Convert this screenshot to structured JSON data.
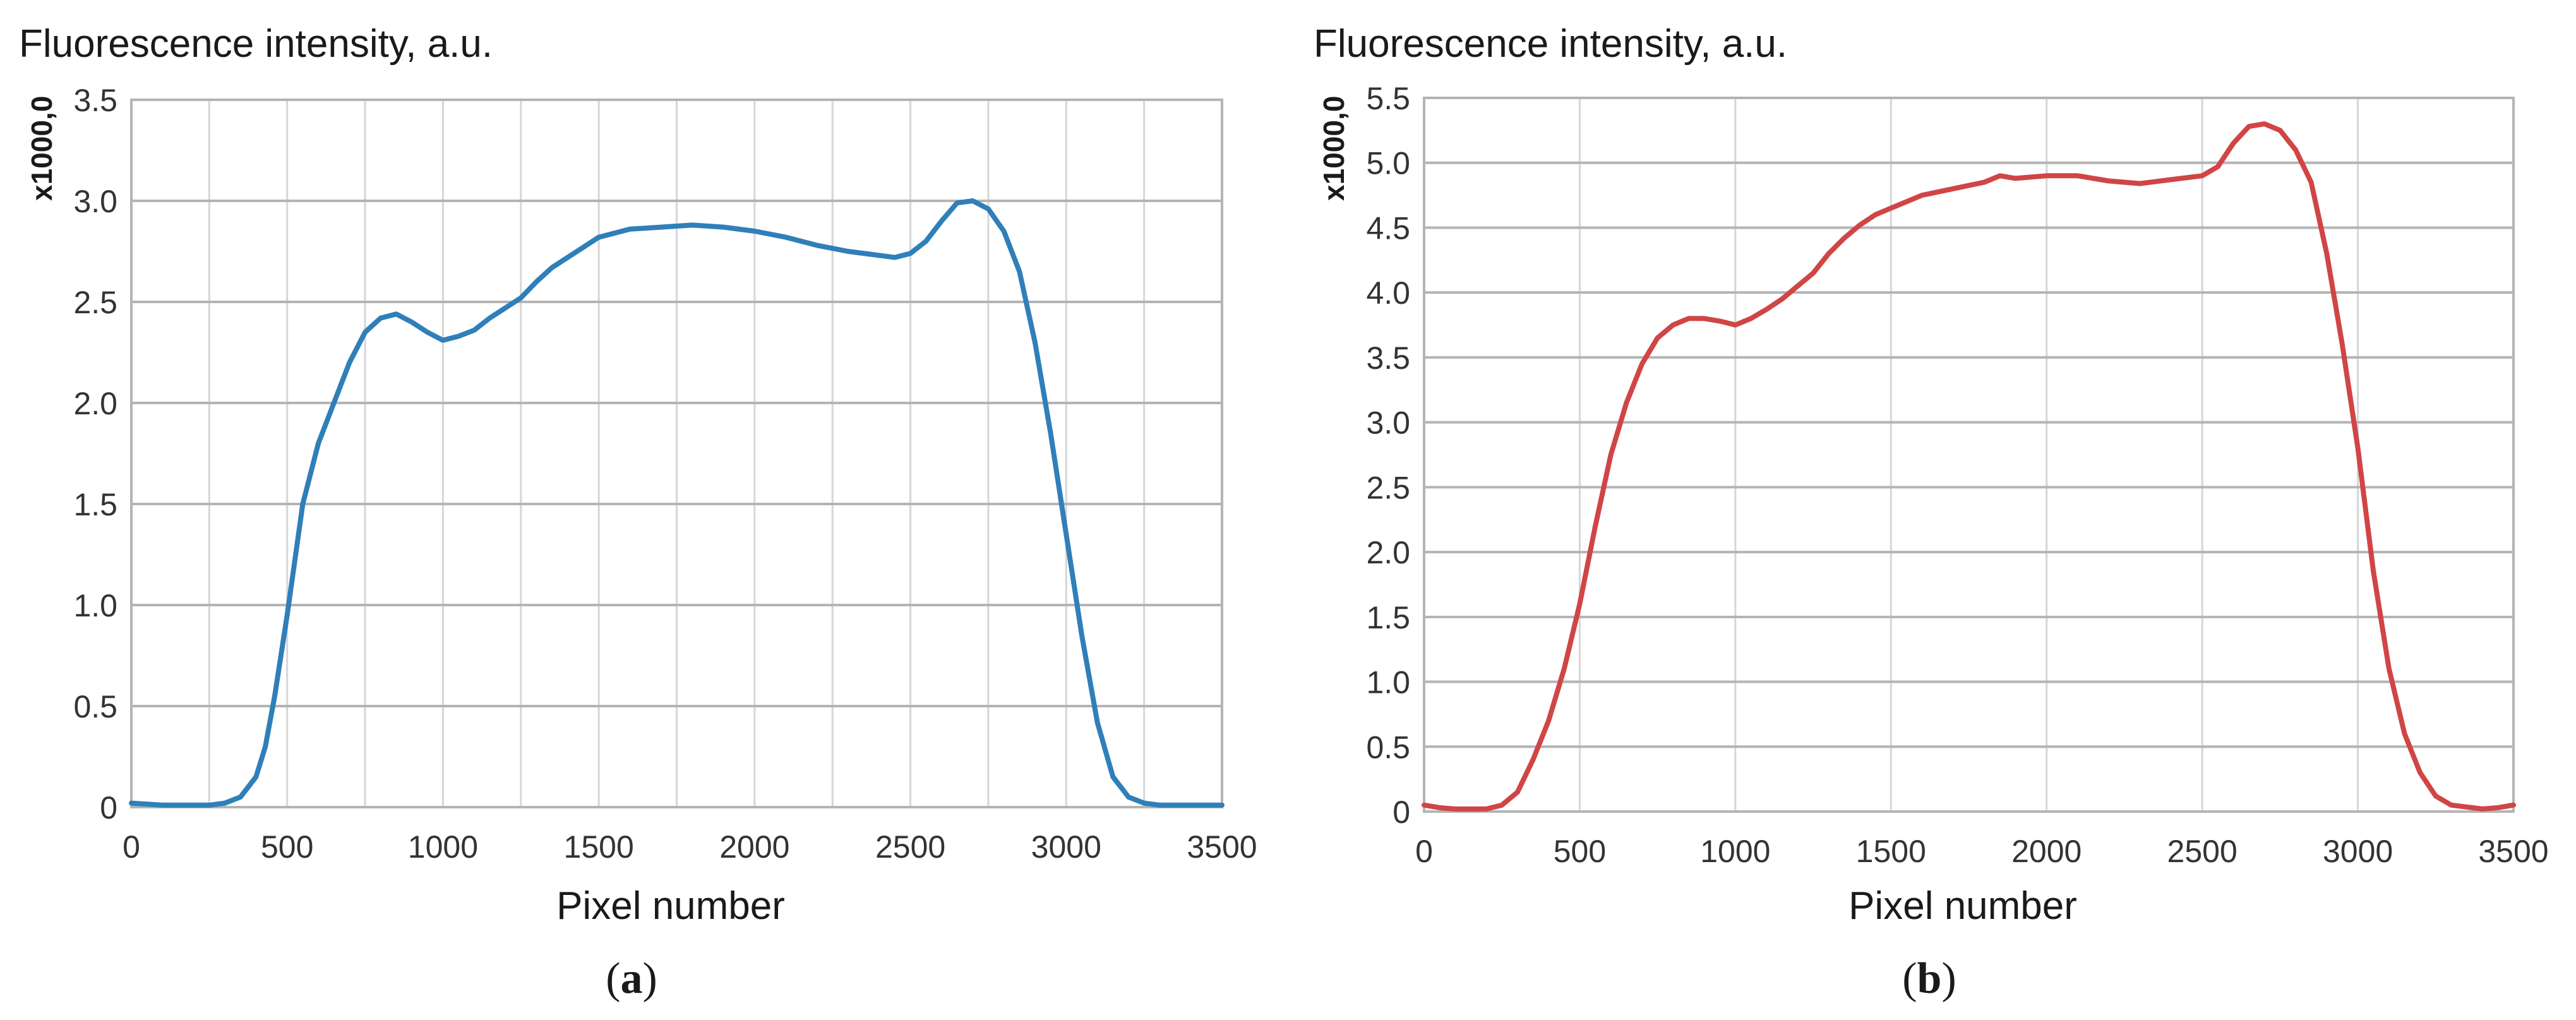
{
  "panels": [
    {
      "ylabel": "Fluorescence intensity, a.u.",
      "scale_label": "x1000,0",
      "xlabel": "Pixel number",
      "caption_open": "(",
      "caption_letter": "a",
      "caption_close": ")"
    },
    {
      "ylabel": "Fluorescence intensity, a.u.",
      "scale_label": "x1000,0",
      "xlabel": "Pixel number",
      "caption_open": "(",
      "caption_letter": "b",
      "caption_close": ")"
    }
  ],
  "chart_data": [
    {
      "type": "line",
      "title": "",
      "xlabel": "Pixel number",
      "ylabel": "Fluorescence intensity, a.u.",
      "y_scale_note": "x1000,0",
      "xlim": [
        0,
        3500
      ],
      "ylim": [
        0,
        3.5
      ],
      "xticks": [
        0,
        500,
        1000,
        1500,
        2000,
        2500,
        3000,
        3500
      ],
      "yticks": [
        0,
        0.5,
        1.0,
        1.5,
        2.0,
        2.5,
        3.0,
        3.5
      ],
      "ytick_labels": [
        "0",
        "0.5",
        "1.0",
        "1.5",
        "2.0",
        "2.5",
        "3.0",
        "3.5"
      ],
      "x_minor_step": 250,
      "grid": true,
      "series": [
        {
          "name": "a",
          "color": "#2f7fb9",
          "x": [
            0,
            100,
            200,
            250,
            300,
            350,
            400,
            430,
            460,
            500,
            550,
            600,
            650,
            700,
            750,
            800,
            850,
            900,
            950,
            1000,
            1050,
            1100,
            1150,
            1200,
            1250,
            1300,
            1350,
            1400,
            1450,
            1500,
            1600,
            1700,
            1800,
            1900,
            2000,
            2100,
            2200,
            2300,
            2400,
            2450,
            2500,
            2550,
            2600,
            2650,
            2700,
            2750,
            2800,
            2850,
            2900,
            2950,
            3000,
            3050,
            3100,
            3150,
            3200,
            3250,
            3300,
            3400,
            3500
          ],
          "y": [
            0.02,
            0.01,
            0.01,
            0.01,
            0.02,
            0.05,
            0.15,
            0.3,
            0.55,
            0.95,
            1.5,
            1.8,
            2.0,
            2.2,
            2.35,
            2.42,
            2.44,
            2.4,
            2.35,
            2.31,
            2.33,
            2.36,
            2.42,
            2.47,
            2.52,
            2.6,
            2.67,
            2.72,
            2.77,
            2.82,
            2.86,
            2.87,
            2.88,
            2.87,
            2.85,
            2.82,
            2.78,
            2.75,
            2.73,
            2.72,
            2.74,
            2.8,
            2.9,
            2.99,
            3.0,
            2.96,
            2.85,
            2.65,
            2.3,
            1.85,
            1.35,
            0.85,
            0.42,
            0.15,
            0.05,
            0.02,
            0.01,
            0.01,
            0.01
          ]
        }
      ]
    },
    {
      "type": "line",
      "title": "",
      "xlabel": "Pixel number",
      "ylabel": "Fluorescence intensity, a.u.",
      "y_scale_note": "x1000,0",
      "xlim": [
        0,
        3500
      ],
      "ylim": [
        0,
        5.5
      ],
      "xticks": [
        0,
        500,
        1000,
        1500,
        2000,
        2500,
        3000,
        3500
      ],
      "yticks": [
        0,
        0.5,
        1.0,
        1.5,
        2.0,
        2.5,
        3.0,
        3.5,
        4.0,
        4.5,
        5.0,
        5.5
      ],
      "ytick_labels": [
        "0",
        "0.5",
        "1.0",
        "1.5",
        "2.0",
        "2.5",
        "3.0",
        "3.5",
        "4.0",
        "4.5",
        "5.0",
        "5.5"
      ],
      "x_minor_step": 500,
      "grid": true,
      "series": [
        {
          "name": "b",
          "color": "#d04545",
          "x": [
            0,
            50,
            100,
            200,
            250,
            300,
            350,
            400,
            450,
            500,
            550,
            600,
            650,
            700,
            750,
            800,
            850,
            900,
            950,
            1000,
            1050,
            1100,
            1150,
            1200,
            1250,
            1300,
            1350,
            1400,
            1450,
            1500,
            1600,
            1700,
            1800,
            1850,
            1900,
            2000,
            2100,
            2200,
            2300,
            2400,
            2500,
            2550,
            2600,
            2650,
            2700,
            2750,
            2800,
            2850,
            2900,
            2950,
            3000,
            3050,
            3100,
            3150,
            3200,
            3250,
            3300,
            3400,
            3450,
            3500
          ],
          "y": [
            0.05,
            0.03,
            0.02,
            0.02,
            0.05,
            0.15,
            0.4,
            0.7,
            1.1,
            1.6,
            2.2,
            2.75,
            3.15,
            3.45,
            3.65,
            3.75,
            3.8,
            3.8,
            3.78,
            3.75,
            3.8,
            3.87,
            3.95,
            4.05,
            4.15,
            4.3,
            4.42,
            4.52,
            4.6,
            4.65,
            4.75,
            4.8,
            4.85,
            4.9,
            4.88,
            4.9,
            4.9,
            4.86,
            4.84,
            4.87,
            4.9,
            4.97,
            5.15,
            5.28,
            5.3,
            5.25,
            5.1,
            4.85,
            4.3,
            3.6,
            2.8,
            1.85,
            1.1,
            0.6,
            0.3,
            0.12,
            0.05,
            0.02,
            0.03,
            0.05
          ]
        }
      ]
    }
  ]
}
